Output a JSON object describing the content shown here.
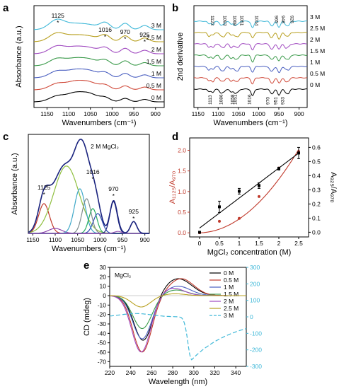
{
  "figure": {
    "panels": [
      "a",
      "b",
      "c",
      "d",
      "e"
    ]
  },
  "chart_data": [
    {
      "panel": "a",
      "type": "line",
      "xlabel": "Wavenumbers (cm⁻¹)",
      "ylabel": "Absorbance (a.u.)",
      "xlim": [
        1180,
        880
      ],
      "x_ticks": [
        1150,
        1100,
        1050,
        1000,
        950,
        900
      ],
      "series": [
        {
          "name": "0 M",
          "color": "#000000",
          "offset": 0,
          "peaks": [
            [
              1127,
              0.55,
              18
            ],
            [
              1085,
              0.85,
              20
            ],
            [
              1050,
              0.7,
              18
            ],
            [
              1016,
              0.4,
              12
            ],
            [
              970,
              0.35,
              10
            ],
            [
              925,
              0.25,
              10
            ]
          ]
        },
        {
          "name": "0.5 M",
          "color": "#d04a3a",
          "offset": 1,
          "peaks": [
            [
              1127,
              0.6,
              18
            ],
            [
              1085,
              0.8,
              20
            ],
            [
              1050,
              0.65,
              18
            ],
            [
              1016,
              0.45,
              12
            ],
            [
              970,
              0.4,
              10
            ],
            [
              925,
              0.28,
              10
            ]
          ]
        },
        {
          "name": "1 M",
          "color": "#4a5fc0",
          "offset": 2,
          "peaks": [
            [
              1127,
              0.65,
              18
            ],
            [
              1085,
              0.75,
              20
            ],
            [
              1050,
              0.6,
              18
            ],
            [
              1016,
              0.5,
              12
            ],
            [
              970,
              0.45,
              10
            ],
            [
              925,
              0.3,
              10
            ]
          ]
        },
        {
          "name": "1.5 M",
          "color": "#3a9a4a",
          "offset": 3,
          "peaks": [
            [
              1127,
              0.7,
              18
            ],
            [
              1085,
              0.7,
              20
            ],
            [
              1050,
              0.55,
              18
            ],
            [
              1016,
              0.55,
              12
            ],
            [
              970,
              0.5,
              10
            ],
            [
              925,
              0.32,
              10
            ]
          ]
        },
        {
          "name": "2 M",
          "color": "#a04ac0",
          "offset": 4,
          "peaks": [
            [
              1127,
              0.75,
              18
            ],
            [
              1085,
              0.65,
              20
            ],
            [
              1050,
              0.5,
              18
            ],
            [
              1016,
              0.6,
              12
            ],
            [
              970,
              0.55,
              10
            ],
            [
              925,
              0.35,
              10
            ]
          ]
        },
        {
          "name": "2.5 M",
          "color": "#b8a020",
          "offset": 5,
          "peaks": [
            [
              1127,
              0.85,
              18
            ],
            [
              1085,
              0.6,
              20
            ],
            [
              1050,
              0.45,
              18
            ],
            [
              1016,
              0.65,
              12
            ],
            [
              970,
              0.6,
              10
            ],
            [
              925,
              0.38,
              10
            ]
          ]
        },
        {
          "name": "3 M",
          "color": "#3fb8d8",
          "offset": 6,
          "peaks": [
            [
              1127,
              1.0,
              18
            ],
            [
              1085,
              0.55,
              20
            ],
            [
              1050,
              0.4,
              18
            ],
            [
              1016,
              0.7,
              12
            ],
            [
              970,
              0.65,
              10
            ],
            [
              925,
              0.42,
              10
            ]
          ]
        }
      ],
      "annotations": [
        {
          "text": "1125",
          "x": 1125
        },
        {
          "text": "1016",
          "x": 1016
        },
        {
          "text": "970",
          "x": 970
        },
        {
          "text": "925",
          "x": 925
        }
      ]
    },
    {
      "panel": "b",
      "type": "line",
      "xlabel": "Wavenumbers (cm⁻¹)",
      "ylabel": "2nd derivative",
      "xlim": [
        1160,
        880
      ],
      "x_ticks": [
        1150,
        1100,
        1050,
        1000,
        950,
        900
      ],
      "series_names": [
        "0 M",
        "0.5 M",
        "1 M",
        "1.5 M",
        "2 M",
        "2.5 M",
        "3 M"
      ],
      "series_colors": [
        "#000000",
        "#d04a3a",
        "#4a5fc0",
        "#3a9a4a",
        "#a04ac0",
        "#b8a020",
        "#3fb8d8"
      ],
      "bands": [
        1123,
        1113,
        1093,
        1086,
        1068,
        1058,
        1051,
        1016,
        1014,
        970,
        965,
        951,
        948,
        933,
        926
      ],
      "top_labels": [
        "1123",
        "1093",
        "1068",
        "1051",
        "1014",
        "965",
        "948",
        "926"
      ],
      "top_label_x": [
        1123,
        1093,
        1068,
        1051,
        1014,
        965,
        948,
        926
      ],
      "bottom_labels": [
        "1113",
        "1086",
        "1058",
        "1051",
        "1016",
        "970",
        "951",
        "933"
      ],
      "bottom_label_x": [
        1113,
        1086,
        1058,
        1051,
        1016,
        970,
        951,
        933
      ]
    },
    {
      "panel": "c",
      "type": "line",
      "title": "2 M MgCl₂",
      "xlabel": "Wavenumbers (cm⁻¹)",
      "ylabel": "Absorbance (a.u.)",
      "xlim": [
        1160,
        890
      ],
      "ylim": [
        0,
        1.0
      ],
      "x_ticks": [
        1150,
        1100,
        1050,
        1000,
        950,
        900
      ],
      "components": [
        {
          "center": 1125,
          "height": 0.3,
          "width": 12,
          "color": "#c0392b"
        },
        {
          "center": 1100,
          "height": 0.05,
          "width": 15,
          "color": "#8e44ad"
        },
        {
          "center": 1075,
          "height": 0.68,
          "width": 28,
          "color": "#8fbf3f"
        },
        {
          "center": 1045,
          "height": 0.45,
          "width": 12,
          "color": "#3fa8c8"
        },
        {
          "center": 1030,
          "height": 0.35,
          "width": 10,
          "color": "#7f8c8d"
        },
        {
          "center": 1016,
          "height": 0.25,
          "width": 9,
          "color": "#27ae60"
        },
        {
          "center": 1005,
          "height": 0.2,
          "width": 10,
          "color": "#2c4fb0"
        },
        {
          "center": 970,
          "height": 0.32,
          "width": 8,
          "color": "#1a237e"
        },
        {
          "center": 925,
          "height": 0.12,
          "width": 7,
          "color": "#1a237e"
        },
        {
          "center": 960,
          "height": 0.02,
          "width": 8,
          "color": "#9b59b6"
        }
      ],
      "annotations": [
        {
          "text": "1125",
          "x": 1125
        },
        {
          "text": "1016",
          "x": 1016
        },
        {
          "text": "970",
          "x": 970
        },
        {
          "text": "925",
          "x": 925
        }
      ]
    },
    {
      "panel": "d",
      "type": "scatter",
      "xlabel": "MgCl₂ concentration (M)",
      "ylabel_left": "A₁₁₂₅/A₉₇₀",
      "ylabel_right": "A₉₂₅/A₉₇₀",
      "xlim": [
        -0.25,
        2.75
      ],
      "ylim_left": [
        -0.1,
        2.3
      ],
      "ylim_right": [
        -0.033,
        0.667
      ],
      "x_ticks": [
        "0",
        "0.5",
        "1",
        "1.5",
        "2",
        "2.5"
      ],
      "x_tick_values": [
        0,
        0.5,
        1,
        1.5,
        2,
        2.5
      ],
      "y_left_ticks": [
        "0.0",
        "0.5",
        "1.0",
        "1.5",
        "2.0"
      ],
      "y_left_tick_values": [
        0,
        0.5,
        1.0,
        1.5,
        2.0
      ],
      "y_right_ticks": [
        "0.0",
        "0.1",
        "0.2",
        "0.3",
        "0.4",
        "0.5",
        "0.6"
      ],
      "y_right_tick_values": [
        0,
        0.1,
        0.2,
        0.3,
        0.4,
        0.5,
        0.6
      ],
      "series": [
        {
          "name": "A1125/A970",
          "axis": "left",
          "color": "#c0392b",
          "x": [
            0,
            0.5,
            1,
            1.5,
            2,
            2.5
          ],
          "y": [
            0.0,
            0.28,
            0.35,
            0.88,
            1.57,
            1.97
          ]
        },
        {
          "name": "A925/A970",
          "axis": "right",
          "color": "#000000",
          "x": [
            0,
            0.5,
            1,
            1.5,
            2,
            2.5
          ],
          "y": [
            0.0,
            0.18,
            0.29,
            0.33,
            0.45,
            0.56
          ],
          "err": [
            0,
            0.04,
            0.02,
            0.02,
            0.01,
            0.04
          ]
        }
      ]
    },
    {
      "panel": "e",
      "type": "line",
      "title": "MgCl₂",
      "xlabel": "Wavelength (nm)",
      "ylabel": "CD (mdeg)",
      "xlim": [
        220,
        350
      ],
      "ylim_left": [
        -75,
        30
      ],
      "ylim_right": [
        -300,
        300
      ],
      "x_ticks": [
        220,
        240,
        260,
        280,
        300,
        320,
        340
      ],
      "y_left_ticks": [
        -70,
        -60,
        -50,
        -40,
        -30,
        -20,
        -10,
        0,
        10,
        20,
        30
      ],
      "y_right_ticks": [
        -300,
        -200,
        -100,
        0,
        100,
        200,
        300
      ],
      "series": [
        {
          "name": "0 M",
          "color": "#000000",
          "dash": false,
          "neg": [
            252,
            -48,
            9
          ],
          "pos": [
            285,
            18,
            13
          ]
        },
        {
          "name": "0.5 M",
          "color": "#c0392b",
          "dash": false,
          "neg": [
            251,
            -60,
            9
          ],
          "pos": [
            288,
            18,
            12
          ]
        },
        {
          "name": "1 M",
          "color": "#4a5fc0",
          "dash": false,
          "neg": [
            251,
            -46,
            9
          ],
          "pos": [
            285,
            10,
            12
          ]
        },
        {
          "name": "1.5 M",
          "color": "#3a9a4a",
          "dash": false,
          "neg": [
            251,
            -35,
            9
          ],
          "pos": [
            283,
            6,
            11
          ]
        },
        {
          "name": "2 M",
          "color": "#a04ac0",
          "dash": false,
          "neg": [
            250,
            -60,
            9
          ],
          "pos": [
            280,
            8,
            11
          ]
        },
        {
          "name": "2.5 M",
          "color": "#b8a020",
          "dash": false,
          "neg": [
            250,
            -12,
            9
          ],
          "pos": [
            282,
            2,
            10
          ]
        },
        {
          "name": "3 M",
          "color": "#3fb8d8",
          "dash": true,
          "axis": "right"
        }
      ]
    }
  ]
}
